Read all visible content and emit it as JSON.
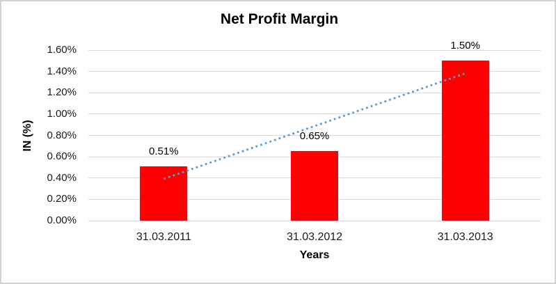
{
  "window": {
    "background": "#ffffff",
    "border_color": "#d3d3d3"
  },
  "chart_data": {
    "type": "bar",
    "title": "Net Profit Margin",
    "xlabel": "Years",
    "ylabel": "IN (%)",
    "categories": [
      "31.03.2011",
      "31.03.2012",
      "31.03.2013"
    ],
    "values": [
      0.51,
      0.65,
      1.5
    ],
    "data_labels": [
      "0.51%",
      "0.65%",
      "1.50%"
    ],
    "ylim": [
      0,
      1.6
    ],
    "ytick_step": 0.2,
    "ytick_labels": [
      "0.00%",
      "0.20%",
      "0.40%",
      "0.60%",
      "0.80%",
      "1.00%",
      "1.20%",
      "1.40%",
      "1.60%"
    ],
    "grid": true,
    "legend_position": "none",
    "bar_color": "#ff0000",
    "gridline_color": "#d9d9d9",
    "trendline": {
      "type": "linear",
      "style": "dotted",
      "color": "#5b9bd5",
      "endpoints_values": [
        0.392,
        1.382
      ]
    }
  }
}
